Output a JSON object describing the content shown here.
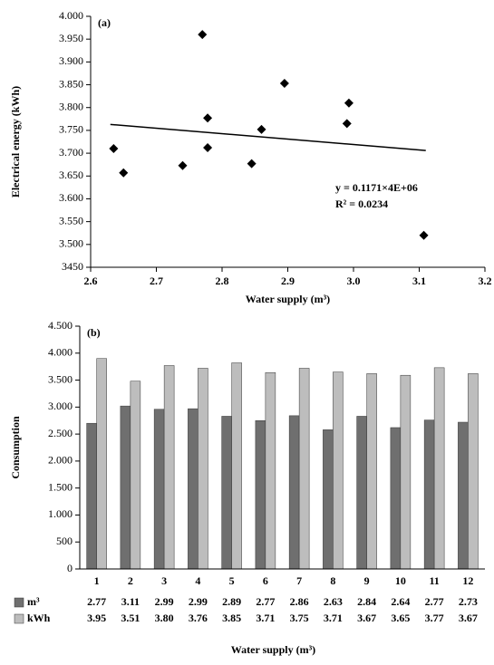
{
  "chart_data": [
    {
      "type": "scatter",
      "panel_label": "(a)",
      "x_label": "Water supply (m³)",
      "y_label": "Electrical energy (kWh)",
      "x": [
        2.635,
        2.65,
        2.74,
        2.77,
        2.778,
        2.778,
        2.845,
        2.86,
        2.895,
        2.99,
        2.993,
        3.107
      ],
      "y": [
        3710,
        3657,
        3673,
        3960,
        3777,
        3712,
        3677,
        3752,
        3853,
        3765,
        3810,
        3520
      ],
      "color": "#000000",
      "trendline": {
        "x": [
          2.63,
          3.11
        ],
        "y": [
          3763,
          3706
        ]
      },
      "annotations": [
        "y = 0.1171×4E+06",
        "R² = 0.0234"
      ],
      "xlim": [
        2.6,
        3.2
      ],
      "xticks": [
        2.6,
        2.7,
        2.8,
        2.9,
        {
          "value": 3.0,
          "label": "3.0"
        },
        3.1,
        3.2
      ],
      "ylim": [
        3450,
        4000
      ],
      "yticks": [
        {
          "value": 3450,
          "label": "3450"
        },
        {
          "value": 3500,
          "label": "3.500"
        },
        {
          "value": 3550,
          "label": "3.550"
        },
        {
          "value": 3600,
          "label": "3.600"
        },
        {
          "value": 3650,
          "label": "3.650"
        },
        {
          "value": 3700,
          "label": "3.700"
        },
        {
          "value": 3750,
          "label": "3.750"
        },
        {
          "value": 3800,
          "label": "3.800"
        },
        {
          "value": 3850,
          "label": "3.850"
        },
        {
          "value": 3900,
          "label": "3.900"
        },
        {
          "value": 3950,
          "label": "3.950"
        },
        {
          "value": 4000,
          "label": "4.000"
        }
      ]
    },
    {
      "type": "bar",
      "panel_label": "(b)",
      "x_label": "Water supply (m³)",
      "y_label": "Consumption",
      "categories": [
        "1",
        "2",
        "3",
        "4",
        "5",
        "6",
        "7",
        "8",
        "9",
        "10",
        "11",
        "12"
      ],
      "series": [
        {
          "name": "m³",
          "color": "#6f6f6f",
          "values": [
            2700,
            3020,
            2960,
            2970,
            2830,
            2750,
            2840,
            2580,
            2830,
            2620,
            2760,
            2720
          ],
          "table": [
            "2.77",
            "3.11",
            "2.99",
            "2.99",
            "2.89",
            "2.77",
            "2.86",
            "2.63",
            "2.84",
            "2.64",
            "2.77",
            "2.73"
          ]
        },
        {
          "name": "kWh",
          "color": "#bdbdbd",
          "values": [
            3900,
            3480,
            3770,
            3720,
            3820,
            3640,
            3720,
            3650,
            3620,
            3590,
            3730,
            3620
          ],
          "table": [
            "3.95",
            "3.51",
            "3.80",
            "3.76",
            "3.85",
            "3.71",
            "3.75",
            "3.71",
            "3.67",
            "3.65",
            "3.77",
            "3.67"
          ]
        }
      ],
      "ylim": [
        0,
        4500
      ],
      "yticks": [
        0,
        500,
        {
          "value": 1000,
          "label": "1.000"
        },
        {
          "value": 1500,
          "label": "1.500"
        },
        {
          "value": 2000,
          "label": "2.000"
        },
        {
          "value": 2500,
          "label": "2.500"
        },
        {
          "value": 3000,
          "label": "3.000"
        },
        {
          "value": 3500,
          "label": "3.500"
        },
        {
          "value": 4000,
          "label": "4.000"
        },
        {
          "value": 4500,
          "label": "4.500"
        }
      ]
    }
  ]
}
